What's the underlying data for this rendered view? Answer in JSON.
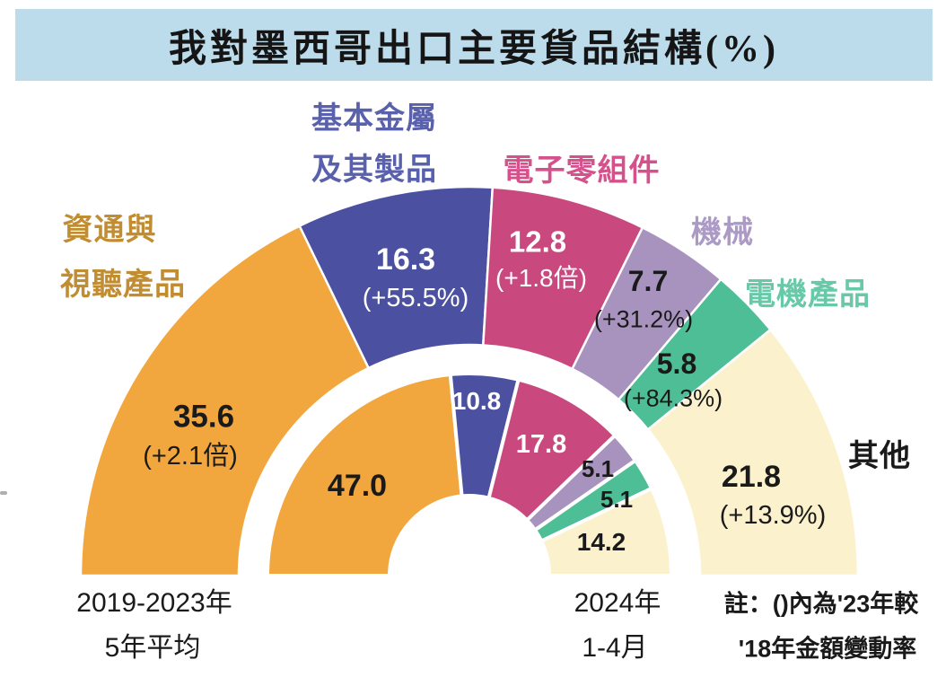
{
  "title": "我對墨西哥出口主要貨品結構(%)",
  "colors": {
    "title_bar_bg": "#BCDBEB",
    "page_bg": "#FFFFFF",
    "edge_mark": "#AFAFAF",
    "value_dark": "#1A1A1A",
    "value_light": "#FFFFFF",
    "separator": "#FFFFFF"
  },
  "chart_data": {
    "type": "pie",
    "variant": "double-semicircle-donut",
    "unit": "%",
    "title": "我對墨西哥出口主要貨品結構(%)",
    "note_lines": [
      "註：()內為'23年較",
      "'18年金額變動率"
    ],
    "categories": [
      {
        "name": "資通與視聽產品",
        "label_lines": [
          "資通與",
          "視聽產品"
        ],
        "color": "#F2A73E",
        "label_color": "#C18D33",
        "value_color": "#1A1A1A"
      },
      {
        "name": "基本金屬及其製品",
        "label_lines": [
          "基本金屬",
          "及其製品"
        ],
        "color": "#4B50A1",
        "label_color": "#5A61AC",
        "value_color": "#FFFFFF"
      },
      {
        "name": "電子零組件",
        "label_lines": [
          "電子零組件"
        ],
        "color": "#C9497F",
        "label_color": "#D4518C",
        "value_color": "#FFFFFF"
      },
      {
        "name": "機械",
        "label_lines": [
          "機械"
        ],
        "color": "#A893BF",
        "label_color": "#AC9AC6",
        "value_color": "#1A1A1A"
      },
      {
        "name": "電機產品",
        "label_lines": [
          "電機產品"
        ],
        "color": "#4EBE97",
        "label_color": "#68C9A8",
        "value_color": "#1A1A1A"
      },
      {
        "name": "其他",
        "label_lines": [
          "其他"
        ],
        "color": "#FBF2CD",
        "label_color": "#1A1A1A",
        "value_color": "#1A1A1A"
      }
    ],
    "series": [
      {
        "name": "2019-2023年 5年平均",
        "ring": "outer",
        "period_lines": [
          "2019-2023年",
          "5年平均"
        ],
        "values": [
          35.6,
          16.3,
          12.8,
          7.7,
          5.8,
          21.8
        ],
        "change_labels": [
          "(+2.1倍)",
          "(+55.5%)",
          "(+1.8倍)",
          "(+31.2%)",
          "(+84.3%)",
          "(+13.9%)"
        ]
      },
      {
        "name": "2024年 1-4月",
        "ring": "inner",
        "period_lines": [
          "2024年",
          "1-4月"
        ],
        "values": [
          47.0,
          10.8,
          17.8,
          5.1,
          5.1,
          14.2
        ]
      }
    ]
  }
}
